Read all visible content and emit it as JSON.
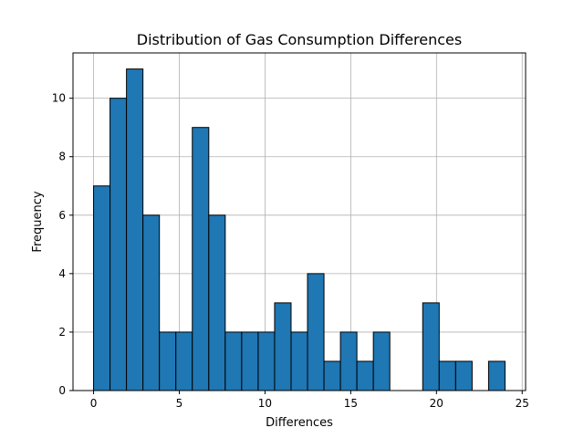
{
  "chart_data": {
    "type": "bar",
    "title": "Distribution of Gas Consumption Differences",
    "xlabel": "Differences",
    "ylabel": "Frequency",
    "bin_edges": [
      0,
      0.96,
      1.92,
      2.88,
      3.84,
      4.8,
      5.76,
      6.72,
      7.68,
      8.64,
      9.6,
      10.56,
      11.52,
      12.48,
      13.44,
      14.4,
      15.36,
      16.32,
      17.28,
      18.24,
      19.2,
      20.16,
      21.12,
      22.08,
      23.04,
      24
    ],
    "values": [
      7,
      10,
      11,
      6,
      2,
      2,
      9,
      6,
      2,
      2,
      2,
      3,
      2,
      4,
      1,
      2,
      1,
      2,
      0,
      0,
      3,
      1,
      1,
      0,
      1
    ],
    "xlim": [
      -1.2,
      25.2
    ],
    "ylim": [
      0,
      11.55
    ],
    "xticks": [
      0,
      5,
      10,
      15,
      20,
      25
    ],
    "yticks": [
      0,
      2,
      4,
      6,
      8,
      10
    ],
    "grid": true,
    "colors": {
      "bar_fill": "#1f77b4",
      "bar_edge": "#000000",
      "grid": "#b0b0b0",
      "axis": "#000000"
    }
  }
}
